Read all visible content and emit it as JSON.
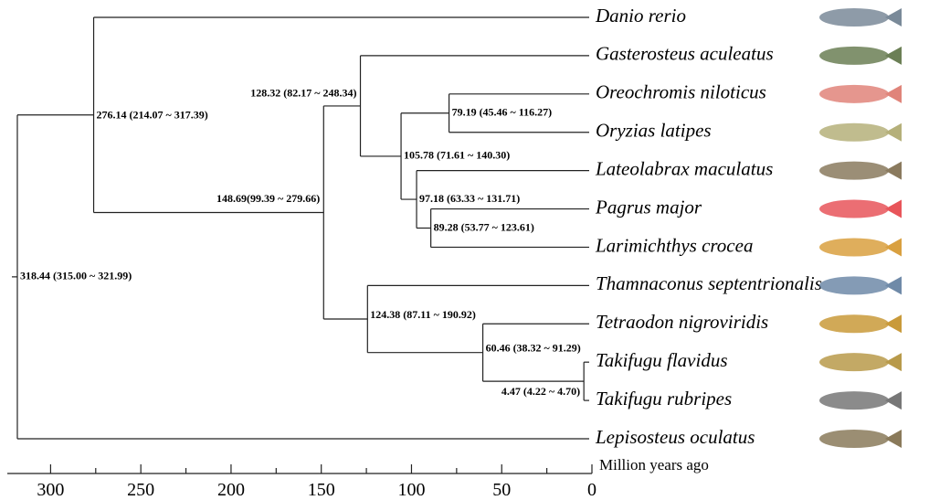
{
  "chart_data": {
    "type": "tree",
    "xlim": [
      324,
      0
    ],
    "xticks": [
      300,
      250,
      200,
      150,
      100,
      50,
      0
    ],
    "xminorticks": [
      275,
      225,
      175,
      125,
      75,
      25
    ],
    "xlabel": "Million years ago",
    "tree": {
      "age": 318.44,
      "label": "318.44 (315.00 ~ 321.99)",
      "children": [
        {
          "age": 276.14,
          "label": "276.14 (214.07 ~ 317.39)",
          "children": [
            {
              "name": "Danio rerio"
            },
            {
              "age": 148.69,
              "label": "148.69(99.39 ~ 279.66)",
              "children": [
                {
                  "age": 128.32,
                  "label": "128.32 (82.17 ~ 248.34)",
                  "children": [
                    {
                      "name": "Gasterosteus aculeatus"
                    },
                    {
                      "age": 105.78,
                      "label": "105.78 (71.61 ~ 140.30)",
                      "children": [
                        {
                          "age": 79.19,
                          "label": "79.19 (45.46 ~ 116.27)",
                          "children": [
                            {
                              "name": "Oreochromis niloticus"
                            },
                            {
                              "name": "Oryzias latipes"
                            }
                          ]
                        },
                        {
                          "age": 97.18,
                          "label": "97.18 (63.33 ~ 131.71)",
                          "children": [
                            {
                              "name": "Lateolabrax maculatus"
                            },
                            {
                              "age": 89.28,
                              "label": "89.28 (53.77 ~ 123.61)",
                              "children": [
                                {
                                  "name": "Pagrus major"
                                },
                                {
                                  "name": "Larimichthys crocea"
                                }
                              ]
                            }
                          ]
                        }
                      ]
                    }
                  ]
                },
                {
                  "age": 124.38,
                  "label": "124.38 (87.11 ~ 190.92)",
                  "children": [
                    {
                      "name": "Thamnaconus septentrionalis"
                    },
                    {
                      "age": 60.46,
                      "label": "60.46 (38.32 ~ 91.29)",
                      "children": [
                        {
                          "name": "Tetraodon nigroviridis"
                        },
                        {
                          "age": 4.47,
                          "label": "4.47 (4.22 ~ 4.70)",
                          "children": [
                            {
                              "name": "Takifugu flavidus"
                            },
                            {
                              "name": "Takifugu rubripes"
                            }
                          ]
                        }
                      ]
                    }
                  ]
                }
              ]
            }
          ]
        },
        {
          "name": "Lepisosteus oculatus"
        }
      ]
    }
  }
}
